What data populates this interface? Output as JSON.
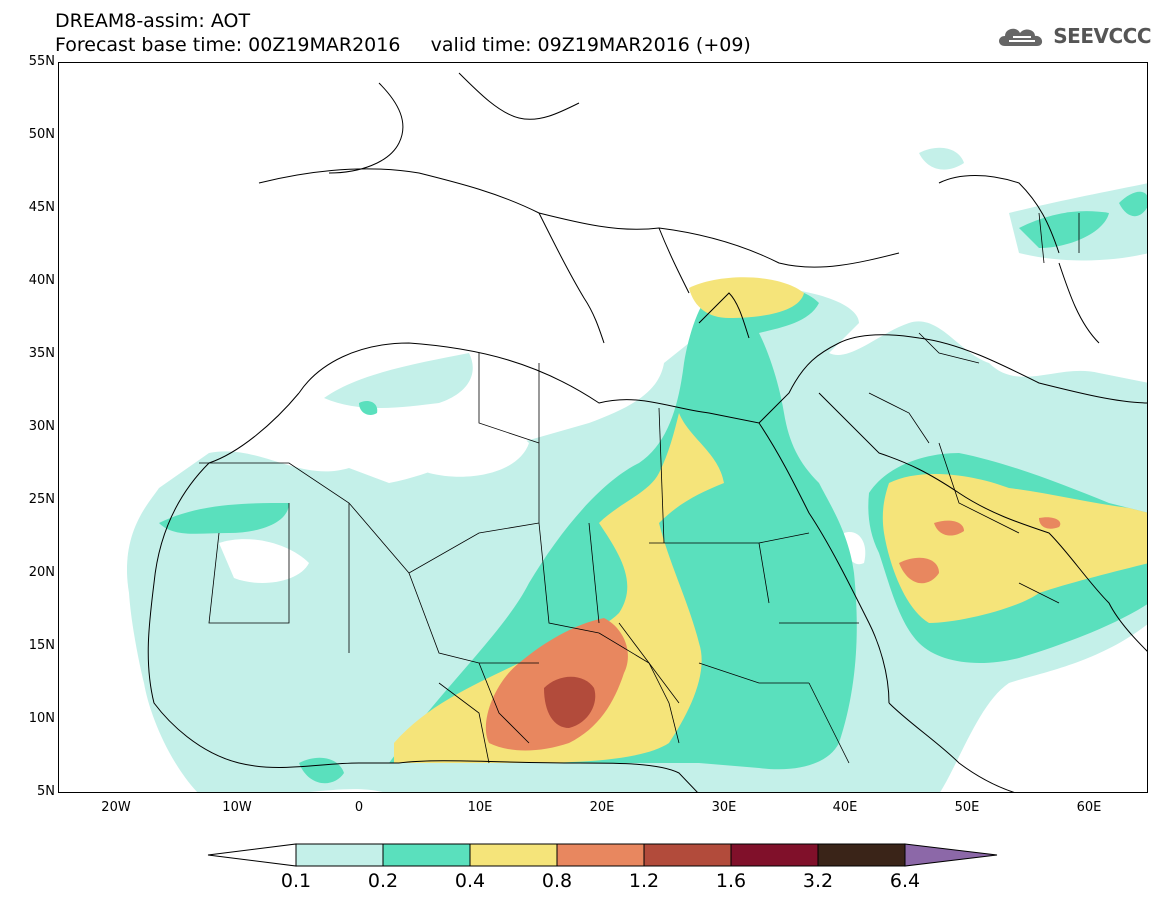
{
  "header": {
    "title_line1": "DREAM8-assim: AOT",
    "title_line2": "Forecast base time: 00Z19MAR2016     valid time: 09Z19MAR2016 (+09)"
  },
  "logo": {
    "text": "SEEVCCC",
    "icon": "cloud-icon"
  },
  "axes": {
    "lat_labels": [
      "55N",
      "50N",
      "45N",
      "40N",
      "35N",
      "30N",
      "25N",
      "20N",
      "15N",
      "10N",
      "5N"
    ],
    "lon_labels": [
      "20W",
      "10W",
      "0",
      "10E",
      "20E",
      "30E",
      "40E",
      "50E",
      "60E"
    ]
  },
  "legend": {
    "labels": [
      "0.1",
      "0.2",
      "0.4",
      "0.8",
      "1.2",
      "1.6",
      "3.2",
      "6.4"
    ],
    "colors": [
      "#ffffff",
      "#c4f0e9",
      "#5ae0bd",
      "#f5e47a",
      "#e8875f",
      "#b24b3b",
      "#80102a",
      "#3a2418",
      "#8c68a8"
    ]
  },
  "map": {
    "variable": "AOT",
    "fill_colors": {
      "light": "#c4f0e9",
      "green": "#5ae0bd",
      "yellow": "#f5e47a",
      "orange": "#e8875f",
      "brown": "#b24b3b"
    }
  }
}
